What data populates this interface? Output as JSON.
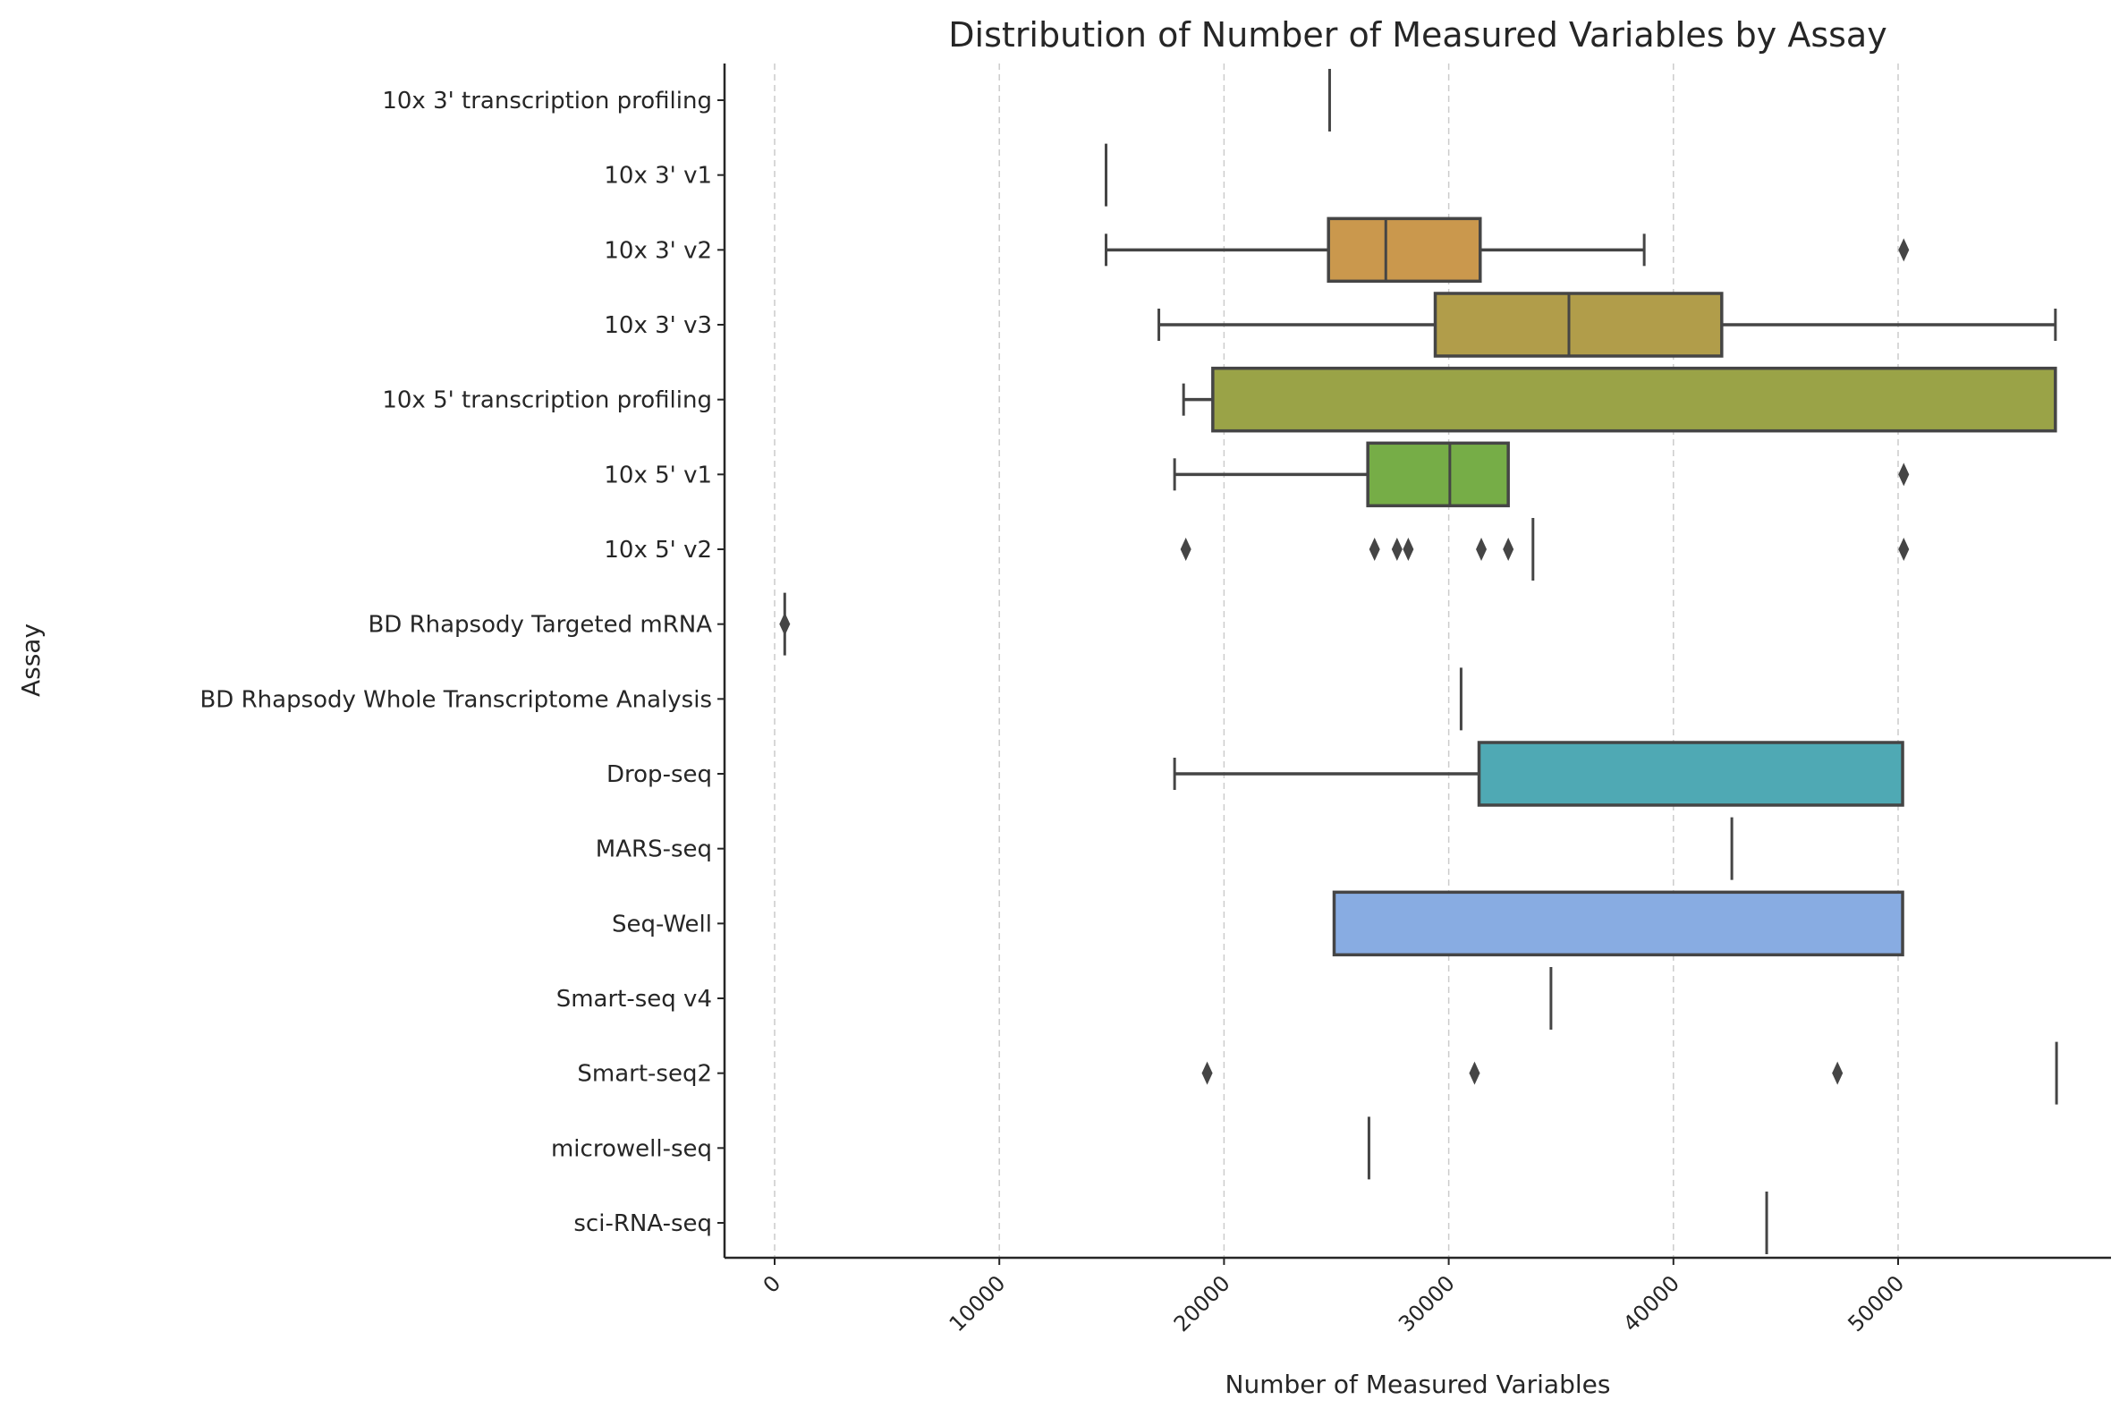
{
  "chart_data": {
    "type": "boxplot",
    "orientation": "horizontal",
    "title": "Distribution of Number of Measured Variables by Assay",
    "xlabel": "Number of Measured Variables",
    "ylabel": "Assay",
    "xlim": [
      -2200,
      59000
    ],
    "xticks": [
      0,
      10000,
      20000,
      30000,
      40000,
      50000
    ],
    "xtick_labels": [
      "0",
      "10000",
      "20000",
      "30000",
      "40000",
      "50000"
    ],
    "grid": "x dashed",
    "box_edge_color": "#454545",
    "categories": [
      {
        "name": "10x 3' transcription profiling",
        "color": "#D58F6A",
        "min": 24700,
        "q1": 24700,
        "median": 24700,
        "q3": 24700,
        "max": 24700,
        "outliers": []
      },
      {
        "name": "10x 3' v1",
        "color": "#D09450",
        "min": 14750,
        "q1": 14750,
        "median": 14750,
        "q3": 14750,
        "max": 14750,
        "outliers": []
      },
      {
        "name": "10x 3' v2",
        "color": "#CA984D",
        "min": 14750,
        "q1": 24650,
        "median": 27200,
        "q3": 31400,
        "max": 38700,
        "outliers": [
          50250
        ]
      },
      {
        "name": "10x 3' v3",
        "color": "#B19D4A",
        "min": 17100,
        "q1": 29400,
        "median": 35350,
        "q3": 42150,
        "max": 57000,
        "outliers": []
      },
      {
        "name": "10x 5' transcription profiling",
        "color": "#9AA347",
        "min": 18200,
        "q1": 19500,
        "median": 57000,
        "q3": 57000,
        "max": 57000,
        "outliers": []
      },
      {
        "name": "10x 5' v1",
        "color": "#76AD47",
        "min": 17800,
        "q1": 26400,
        "median": 30050,
        "q3": 32650,
        "max": 32650,
        "outliers": [
          50250
        ]
      },
      {
        "name": "10x 5' v2",
        "color": "#4DB07A",
        "min": 33750,
        "q1": 33750,
        "median": 33750,
        "q3": 33750,
        "max": 33750,
        "outliers": [
          18300,
          26700,
          27700,
          28200,
          31450,
          32650,
          50250
        ]
      },
      {
        "name": "BD Rhapsody Targeted mRNA",
        "color": "#4EAE98",
        "min": 450,
        "q1": 450,
        "median": 450,
        "q3": 450,
        "max": 450,
        "outliers": [
          450
        ]
      },
      {
        "name": "BD Rhapsody Whole Transcriptome Analysis",
        "color": "#4FACA7",
        "min": 30550,
        "q1": 30550,
        "median": 30550,
        "q3": 30550,
        "max": 30550,
        "outliers": []
      },
      {
        "name": "Drop-seq",
        "color": "#4FA9B4",
        "min": 17800,
        "q1": 31350,
        "median": 50200,
        "q3": 50200,
        "max": 50200,
        "outliers": []
      },
      {
        "name": "MARS-seq",
        "color": "#53A6C6",
        "min": 42600,
        "q1": 42600,
        "median": 42600,
        "q3": 42600,
        "max": 42600,
        "outliers": []
      },
      {
        "name": "Seq-Well",
        "color": "#88ACE2",
        "min": 24900,
        "q1": 24900,
        "median": 50200,
        "q3": 50200,
        "max": 50200,
        "outliers": []
      },
      {
        "name": "Smart-seq v4",
        "color": "#A59DE6",
        "min": 34550,
        "q1": 34550,
        "median": 34550,
        "q3": 34550,
        "max": 34550,
        "outliers": []
      },
      {
        "name": "Smart-seq2",
        "color": "#C394E0",
        "min": 57050,
        "q1": 57050,
        "median": 57050,
        "q3": 57050,
        "max": 57050,
        "outliers": [
          19250,
          31150,
          47300
        ]
      },
      {
        "name": "microwell-seq",
        "color": "#DB8ACB",
        "min": 26450,
        "q1": 26450,
        "median": 26450,
        "q3": 26450,
        "max": 26450,
        "outliers": []
      },
      {
        "name": "sci-RNA-seq",
        "color": "#E287A7",
        "min": 44150,
        "q1": 44150,
        "median": 44150,
        "q3": 44150,
        "max": 44150,
        "outliers": []
      }
    ]
  }
}
